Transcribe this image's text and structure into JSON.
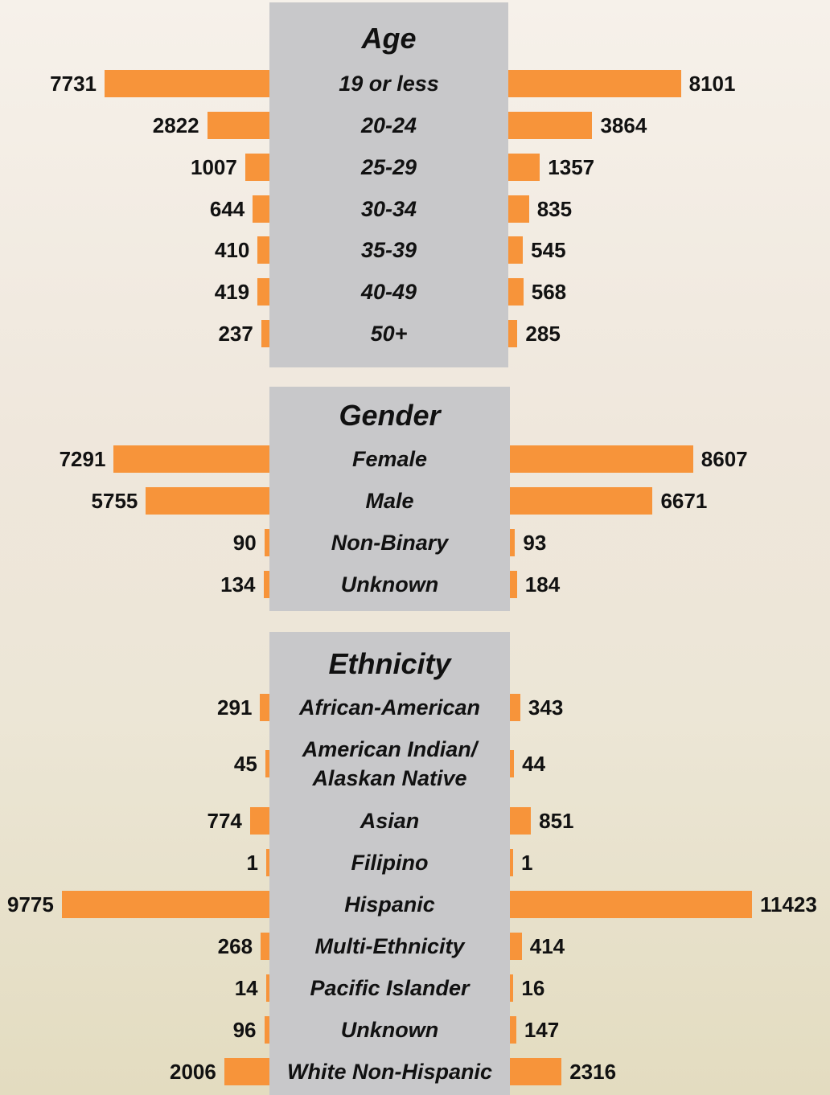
{
  "chart_data": [
    {
      "type": "butterfly",
      "title": "Age",
      "categories": [
        "19 or less",
        "20-24",
        "25-29",
        "30-34",
        "35-39",
        "40-49",
        "50+"
      ],
      "series": [
        {
          "color": "#f7943a",
          "values": [
            7731,
            2822,
            1007,
            644,
            410,
            419,
            237
          ]
        },
        {
          "color": "#f7943a",
          "values": [
            8101,
            3864,
            1357,
            835,
            545,
            568,
            285
          ]
        }
      ]
    },
    {
      "type": "butterfly",
      "title": "Gender",
      "categories": [
        "Female",
        "Male",
        "Non-Binary",
        "Unknown"
      ],
      "series": [
        {
          "color": "#f7943a",
          "values": [
            7291,
            5755,
            90,
            134
          ]
        },
        {
          "color": "#f7943a",
          "values": [
            8607,
            6671,
            93,
            184
          ]
        }
      ]
    },
    {
      "type": "butterfly",
      "title": "Ethnicity",
      "categories": [
        "African-American",
        "American Indian/\nAlaskan Native",
        "Asian",
        "Filipino",
        "Hispanic",
        "Multi-Ethnicity",
        "Pacific Islander",
        "Unknown",
        "White Non-Hispanic"
      ],
      "series": [
        {
          "color": "#f7943a",
          "values": [
            291,
            45,
            774,
            1,
            9775,
            268,
            14,
            96,
            2006
          ]
        },
        {
          "color": "#f7943a",
          "values": [
            343,
            44,
            851,
            1,
            11423,
            414,
            16,
            147,
            2316
          ]
        }
      ]
    }
  ]
}
